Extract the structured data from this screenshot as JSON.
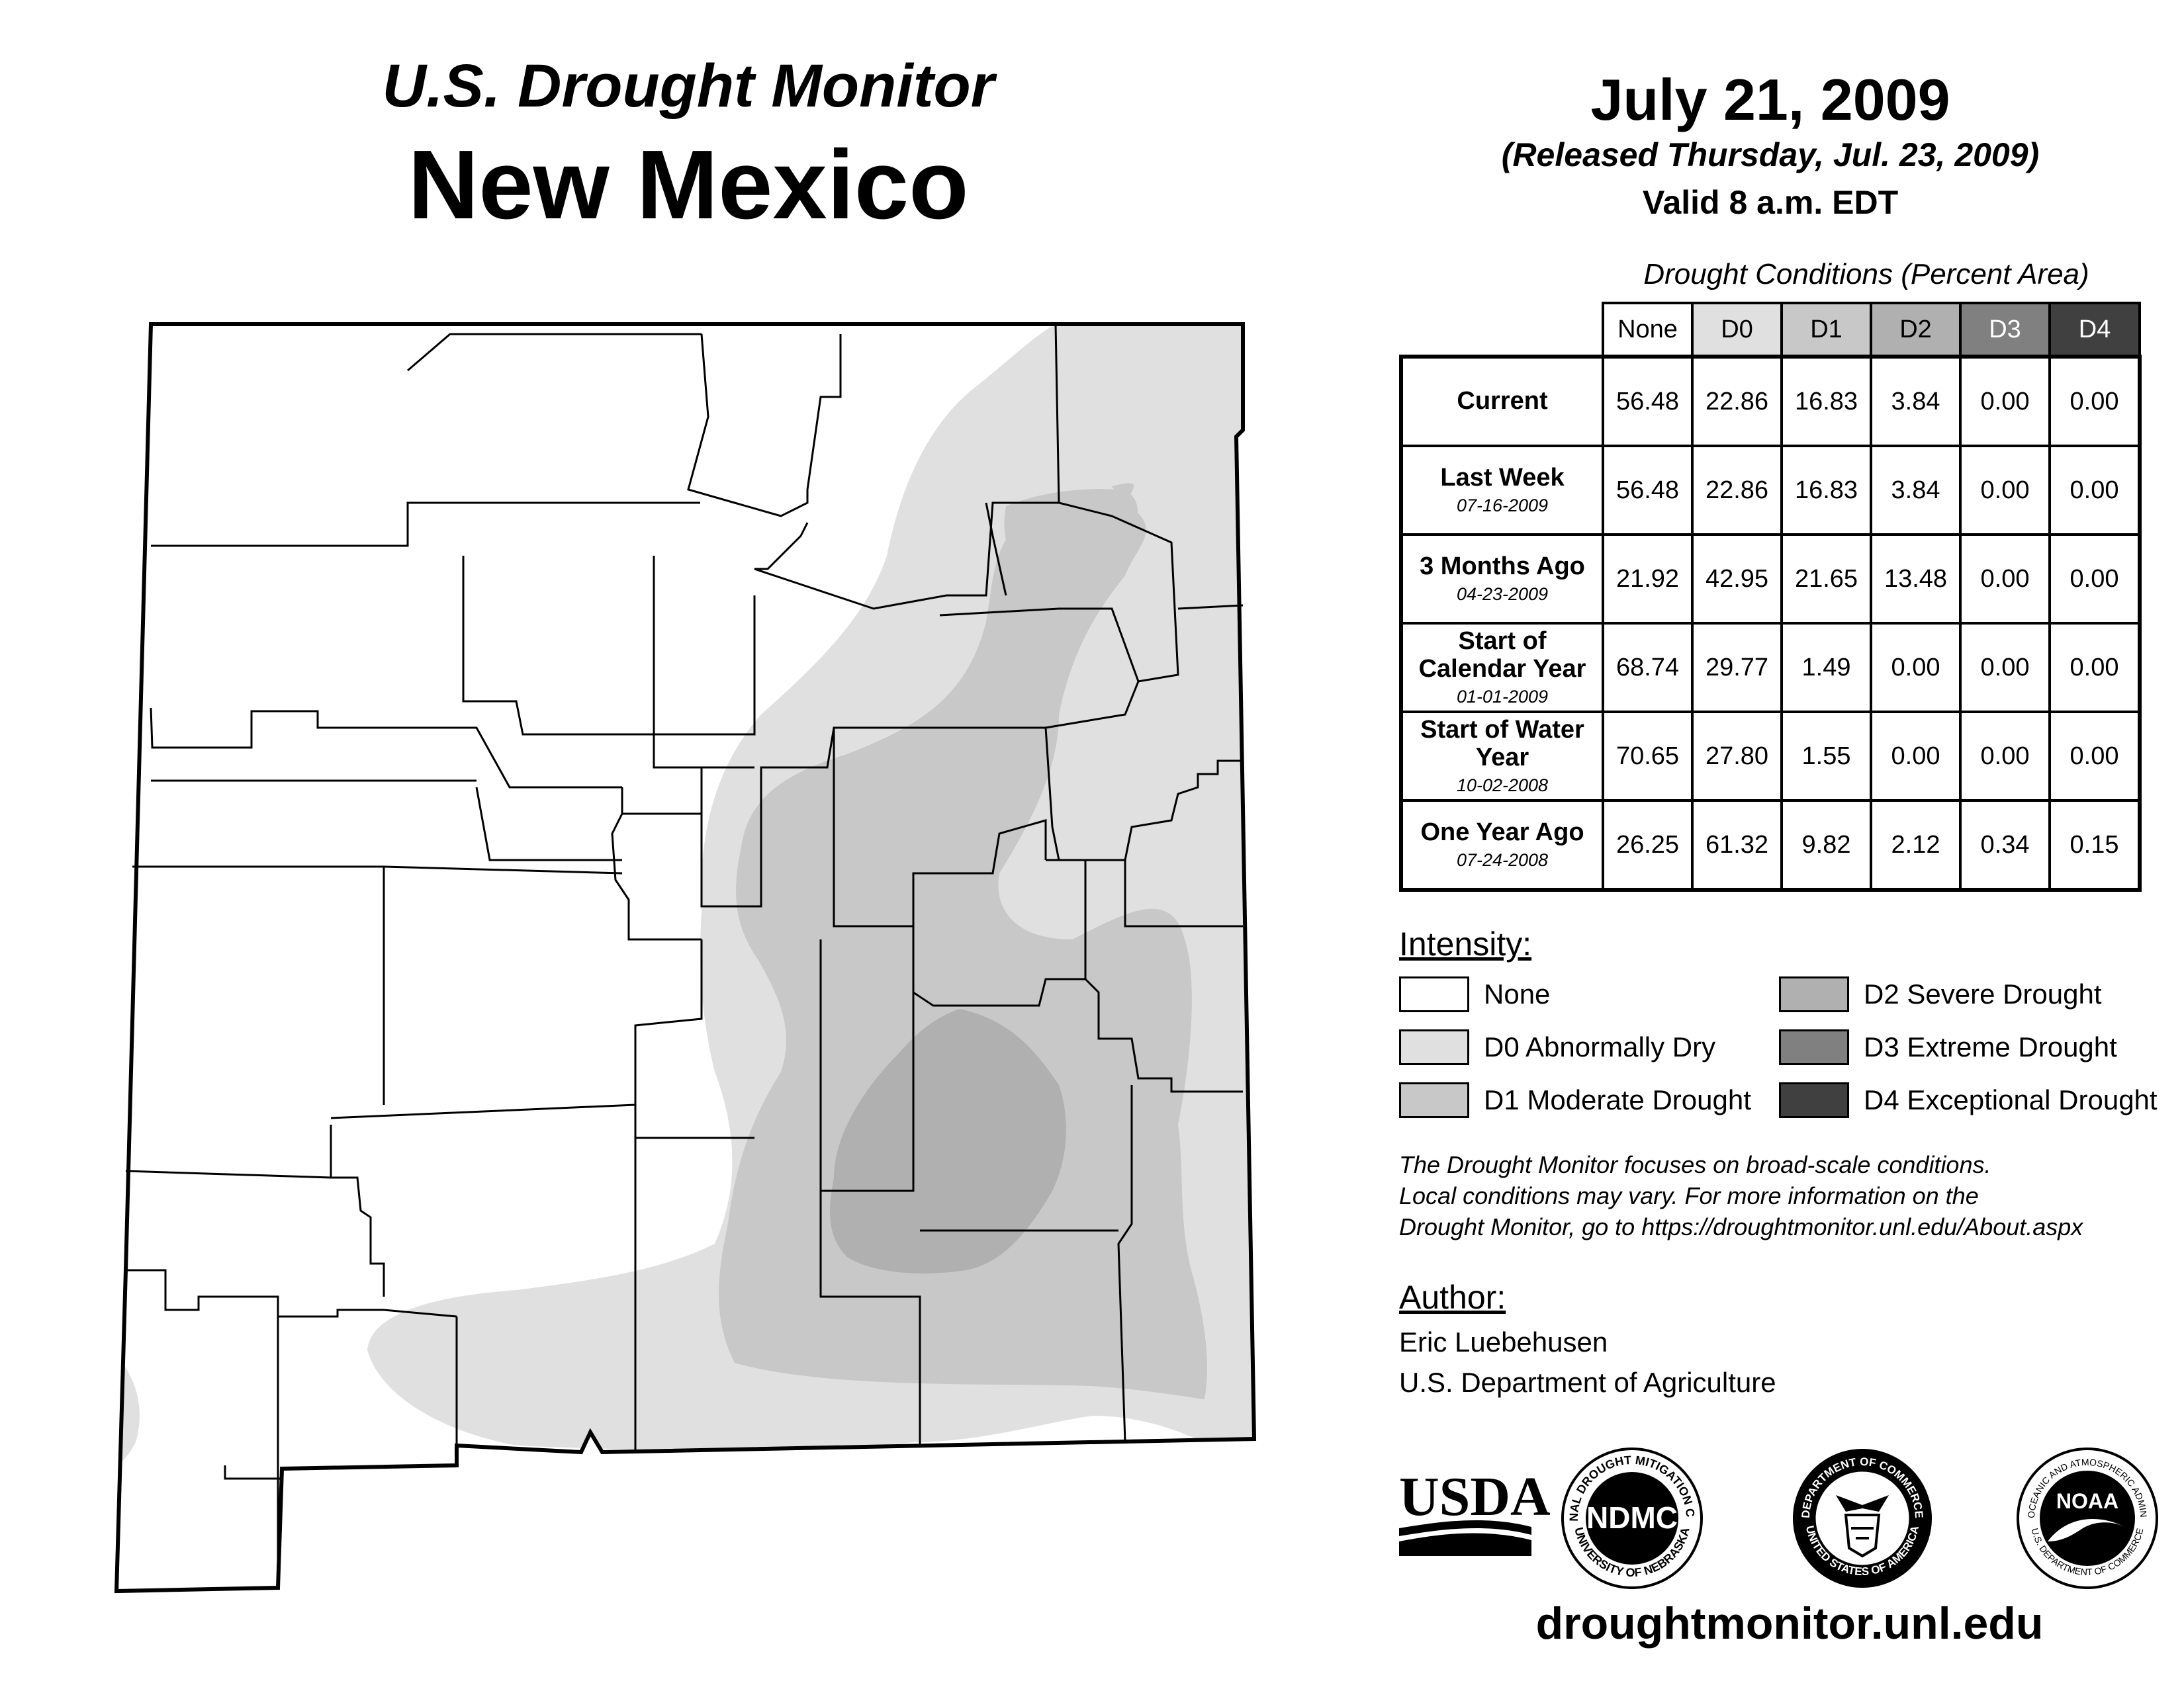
{
  "header": {
    "subtitle": "U.S. Drought Monitor",
    "state": "New Mexico",
    "date": "July 21, 2009",
    "release_note": "(Released Thursday, Jul. 23, 2009)",
    "valid_time": "Valid 8 a.m. EDT"
  },
  "stats": {
    "caption": "Drought Conditions (Percent Area)",
    "columns": [
      "None",
      "D0",
      "D1",
      "D2",
      "D3",
      "D4"
    ],
    "column_colors": [
      "#ffffff",
      "#e0e0e0",
      "#c8c8c8",
      "#b0b0b0",
      "#808080",
      "#404040"
    ],
    "rows": [
      {
        "label": "Current",
        "date": "",
        "values": [
          "56.48",
          "22.86",
          "16.83",
          "3.84",
          "0.00",
          "0.00"
        ]
      },
      {
        "label": "Last Week",
        "date": "07-16-2009",
        "values": [
          "56.48",
          "22.86",
          "16.83",
          "3.84",
          "0.00",
          "0.00"
        ]
      },
      {
        "label": "3 Months Ago",
        "date": "04-23-2009",
        "values": [
          "21.92",
          "42.95",
          "21.65",
          "13.48",
          "0.00",
          "0.00"
        ]
      },
      {
        "label": "Start of Calendar Year",
        "date": "01-01-2009",
        "values": [
          "68.74",
          "29.77",
          "1.49",
          "0.00",
          "0.00",
          "0.00"
        ]
      },
      {
        "label": "Start of Water Year",
        "date": "10-02-2008",
        "values": [
          "70.65",
          "27.80",
          "1.55",
          "0.00",
          "0.00",
          "0.00"
        ]
      },
      {
        "label": "One Year Ago",
        "date": "07-24-2008",
        "values": [
          "26.25",
          "61.32",
          "9.82",
          "2.12",
          "0.34",
          "0.15"
        ]
      }
    ]
  },
  "legend": {
    "title": "Intensity:",
    "items": [
      {
        "label": "None",
        "color": "#ffffff"
      },
      {
        "label": "D0 Abnormally Dry",
        "color": "#e0e0e0"
      },
      {
        "label": "D1 Moderate Drought",
        "color": "#c8c8c8"
      },
      {
        "label": "D2 Severe Drought",
        "color": "#b0b0b0"
      },
      {
        "label": "D3 Extreme Drought",
        "color": "#808080"
      },
      {
        "label": "D4 Exceptional Drought",
        "color": "#404040"
      }
    ]
  },
  "disclaimer": [
    "The Drought Monitor focuses on broad-scale conditions.",
    "Local conditions may vary. For more information on the",
    "Drought Monitor, go to https://droughtmonitor.unl.edu/About.aspx"
  ],
  "author": {
    "title": "Author:",
    "name": "Eric Luebehusen",
    "org": "U.S. Department of Agriculture"
  },
  "logos": {
    "usda": "USDA",
    "ndmc": "NDMC",
    "ndmc_ring_top": "NATIONAL DROUGHT MITIGATION CENTER",
    "ndmc_ring_bottom": "UNIVERSITY OF NEBRASKA",
    "doc_ring_top": "DEPARTMENT OF COMMERCE",
    "doc_ring_bottom": "UNITED STATES OF AMERICA",
    "noaa": "NOAA",
    "noaa_ring_top": "NATIONAL OCEANIC AND ATMOSPHERIC ADMINISTRATION",
    "noaa_ring_bottom": "U.S. DEPARTMENT OF COMMERCE"
  },
  "website": "droughtmonitor.unl.edu"
}
